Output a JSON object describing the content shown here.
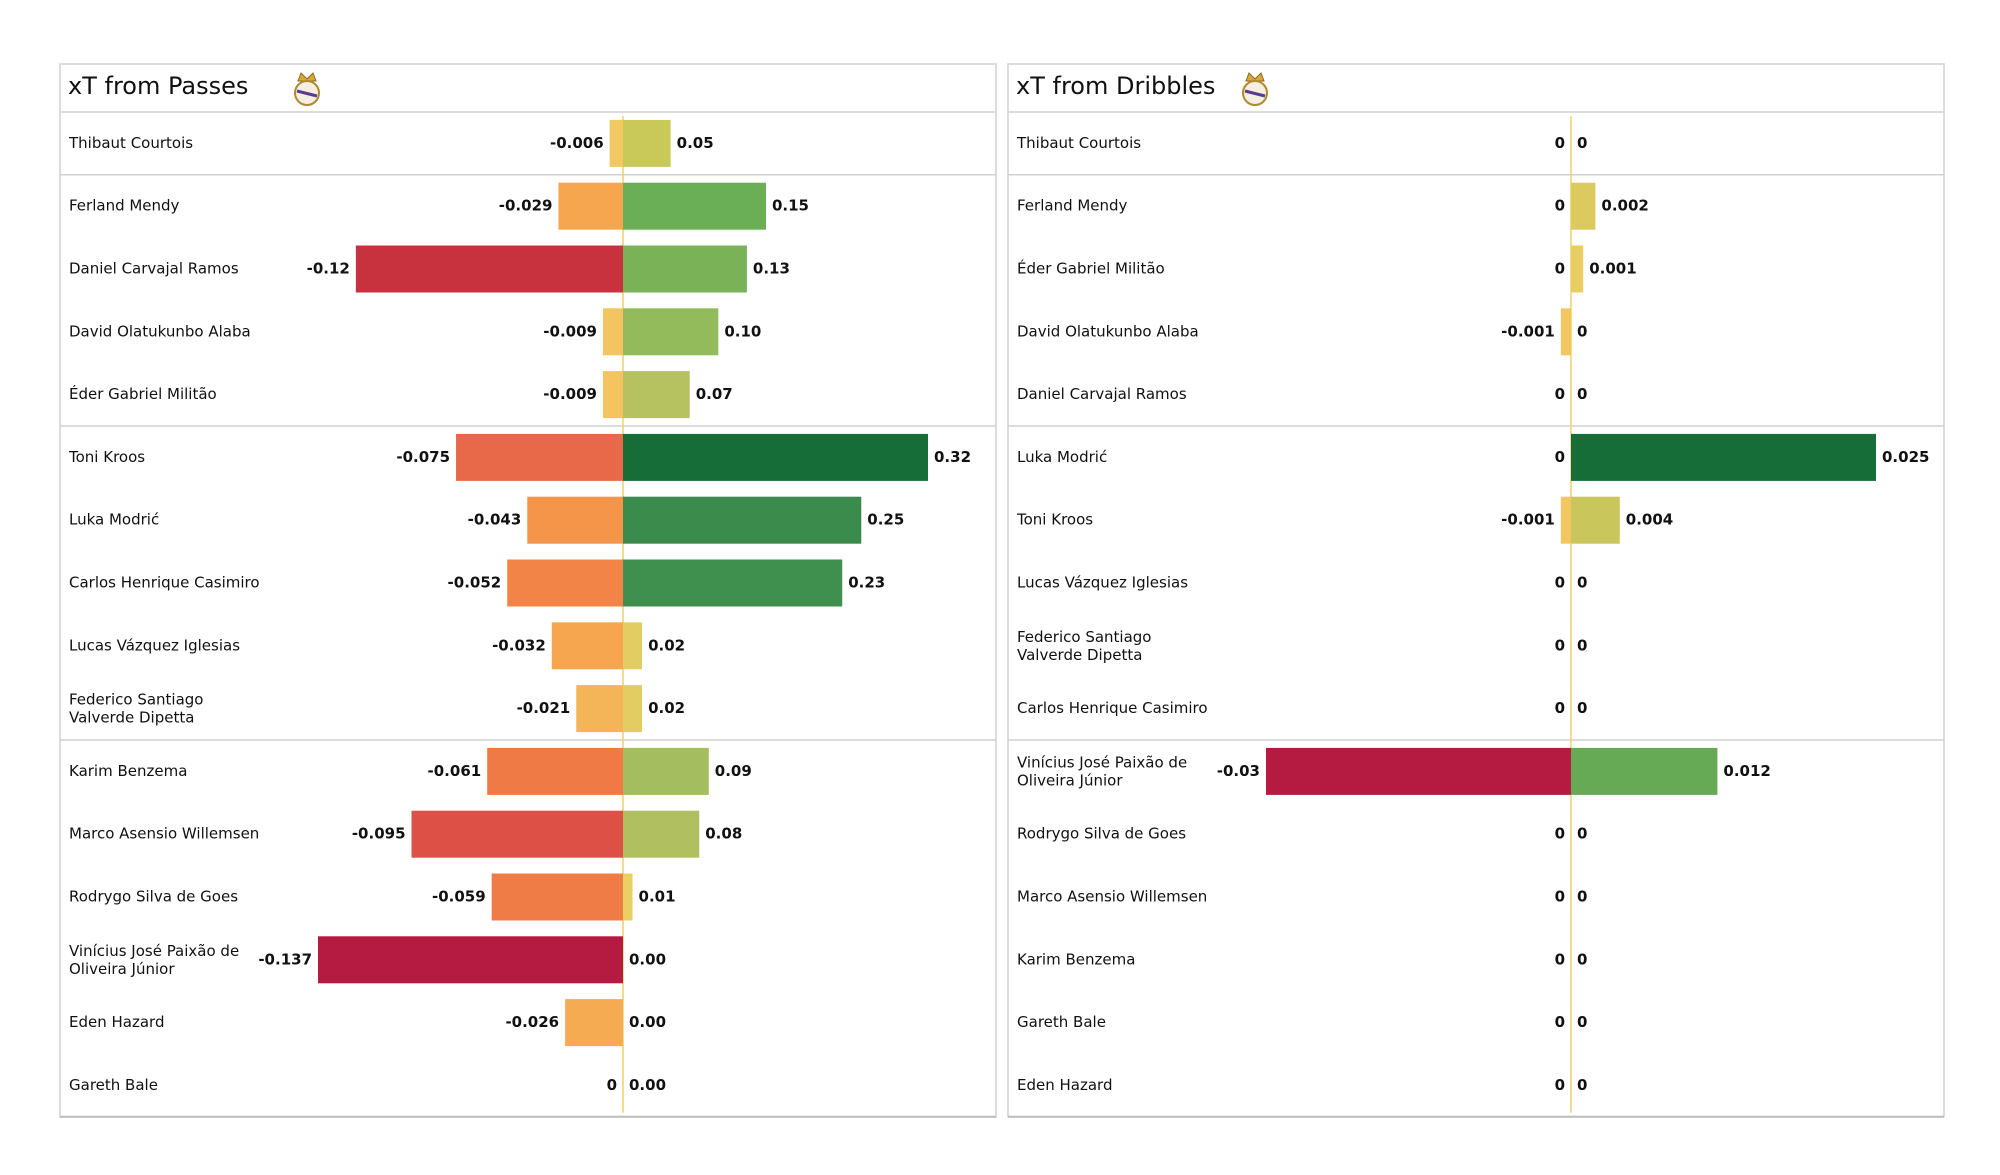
{
  "chart_data": [
    {
      "type": "diverging-bar",
      "title": "xT from Passes",
      "categories": [
        "Thibaut Courtois",
        "Ferland Mendy",
        "Daniel Carvajal Ramos",
        "David Olatukunbo Alaba",
        "Éder Gabriel Militão",
        "Toni Kroos",
        "Luka Modrić",
        "Carlos Henrique Casimiro",
        "Lucas Vázquez Iglesias",
        "Federico Santiago\nValverde Dipetta",
        "Karim Benzema",
        "Marco Asensio Willemsen",
        "Rodrygo Silva de Goes",
        "Vinícius José Paixão de\nOliveira Júnior",
        "Eden Hazard",
        "Gareth Bale"
      ],
      "series": [
        {
          "xlim": [
            -0.137,
            0
          ],
          "values": [
            -0.006,
            -0.029,
            -0.12,
            -0.009,
            -0.009,
            -0.075,
            -0.043,
            -0.052,
            -0.032,
            -0.021,
            -0.061,
            -0.095,
            -0.059,
            -0.137,
            -0.026,
            0
          ],
          "colors": [
            "#f2c862",
            "#f6a64e",
            "#c8323f",
            "#f3c45f",
            "#f3c45f",
            "#e8694a",
            "#f5954a",
            "#f38447",
            "#f6a64e",
            "#f3b558",
            "#ef7a46",
            "#dc5046",
            "#ef7c46",
            "#b51b40",
            "#f5ab52",
            "#f1d168"
          ]
        },
        {
          "xlim": [
            0,
            0.32
          ],
          "values": [
            0.05,
            0.15,
            0.13,
            0.1,
            0.07,
            0.32,
            0.25,
            0.23,
            0.02,
            0.02,
            0.09,
            0.08,
            0.01,
            0,
            0,
            0
          ],
          "value_labels": [
            "0.05",
            "0.15",
            "0.13",
            "0.10",
            "0.07",
            "0.32",
            "0.25",
            "0.23",
            "0.02",
            "0.02",
            "0.09",
            "0.08",
            "0.01",
            "0.00",
            "0.00",
            "0.00"
          ],
          "colors": [
            "#c9c95a",
            "#6aaf56",
            "#7ab357",
            "#94bb5b",
            "#b6c15f",
            "#166d38",
            "#3a8b4c",
            "#3f8f4e",
            "#e2cd62",
            "#e2cd62",
            "#a4bd5e",
            "#b0c060",
            "#ead064",
            "#f1d168",
            "#f1d168",
            "#f1d168"
          ]
        }
      ]
    },
    {
      "type": "diverging-bar",
      "title": "xT from Dribbles",
      "categories": [
        "Thibaut Courtois",
        "Ferland Mendy",
        "Éder Gabriel Militão",
        "David Olatukunbo Alaba",
        "Daniel Carvajal Ramos",
        "Luka Modrić",
        "Toni Kroos",
        "Lucas Vázquez Iglesias",
        "Federico Santiago\nValverde Dipetta",
        "Carlos Henrique Casimiro",
        "Vinícius José Paixão de\nOliveira Júnior",
        "Rodrygo Silva de Goes",
        "Marco Asensio Willemsen",
        "Karim Benzema",
        "Gareth Bale",
        "Eden Hazard"
      ],
      "series": [
        {
          "xlim": [
            -0.03,
            0
          ],
          "values": [
            0,
            0,
            0,
            -0.001,
            0,
            0,
            -0.001,
            0,
            0,
            0,
            -0.03,
            0,
            0,
            0,
            0,
            0
          ],
          "colors": [
            "#f1d168",
            "#f1d168",
            "#f1d168",
            "#f3c760",
            "#f1d168",
            "#f1d168",
            "#f3c760",
            "#f1d168",
            "#f1d168",
            "#f1d168",
            "#b51b40",
            "#f1d168",
            "#f1d168",
            "#f1d168",
            "#f1d168",
            "#f1d168"
          ]
        },
        {
          "xlim": [
            0,
            0.025
          ],
          "values": [
            0,
            0.002,
            0.001,
            0,
            0,
            0.025,
            0.004,
            0,
            0,
            0,
            0.012,
            0,
            0,
            0,
            0,
            0
          ],
          "colors": [
            "#f1d168",
            "#dcca5e",
            "#e8ce63",
            "#f1d168",
            "#f1d168",
            "#166d38",
            "#c9c65c",
            "#f1d168",
            "#f1d168",
            "#f1d168",
            "#67aa55",
            "#f1d168",
            "#f1d168",
            "#f1d168",
            "#f1d168",
            "#f1d168"
          ]
        }
      ]
    }
  ]
}
